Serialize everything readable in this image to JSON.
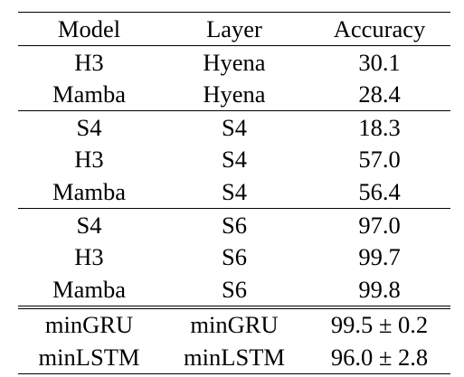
{
  "table": {
    "headers": [
      "Model",
      "Layer",
      "Accuracy"
    ],
    "groups": [
      {
        "rows": [
          [
            "H3",
            "Hyena",
            "30.1"
          ],
          [
            "Mamba",
            "Hyena",
            "28.4"
          ]
        ]
      },
      {
        "rows": [
          [
            "S4",
            "S4",
            "18.3"
          ],
          [
            "H3",
            "S4",
            "57.0"
          ],
          [
            "Mamba",
            "S4",
            "56.4"
          ]
        ]
      },
      {
        "rows": [
          [
            "S4",
            "S6",
            "97.0"
          ],
          [
            "H3",
            "S6",
            "99.7"
          ],
          [
            "Mamba",
            "S6",
            "99.8"
          ]
        ]
      },
      {
        "rows": [
          [
            "minGRU",
            "minGRU",
            "99.5 ± 0.2"
          ],
          [
            "minLSTM",
            "minLSTM",
            "96.0 ± 2.8"
          ]
        ]
      }
    ]
  }
}
